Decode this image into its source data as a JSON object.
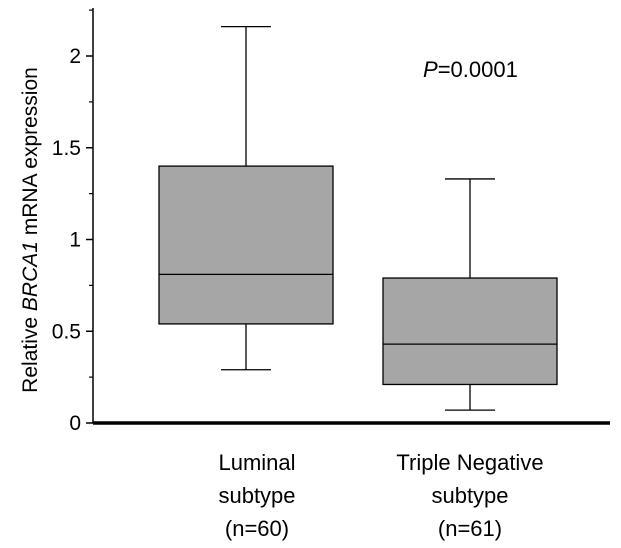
{
  "chart_data": {
    "type": "box",
    "ylabel_parts": [
      {
        "text": "Relative ",
        "italic": false
      },
      {
        "text": "BRCA1",
        "italic": true
      },
      {
        "text": " mRNA expression",
        "italic": false
      }
    ],
    "ylim": [
      0,
      2.2
    ],
    "yticks": [
      0,
      0.5,
      1,
      1.5,
      2
    ],
    "ytick_labels": [
      "0",
      "0.5",
      "1",
      "1.5",
      "2"
    ],
    "minor_yticks": [
      0.25,
      0.75,
      1.25,
      1.75,
      2.25
    ],
    "grid": false,
    "legend": "none",
    "annotation": {
      "p_label": "P",
      "p_value": "=0.0001"
    },
    "colors": {
      "box_fill": "#a6a6a6",
      "line": "#000000"
    },
    "categories": [
      {
        "label_lines": [
          "Luminal",
          "subtype",
          "(n=60)"
        ],
        "whisker_low": 0.29,
        "q1": 0.54,
        "median": 0.81,
        "q3": 1.4,
        "whisker_high": 2.16
      },
      {
        "label_lines": [
          "Triple Negative",
          "subtype",
          "(n=61)"
        ],
        "whisker_low": 0.07,
        "q1": 0.21,
        "median": 0.43,
        "q3": 0.79,
        "whisker_high": 1.33
      }
    ]
  }
}
